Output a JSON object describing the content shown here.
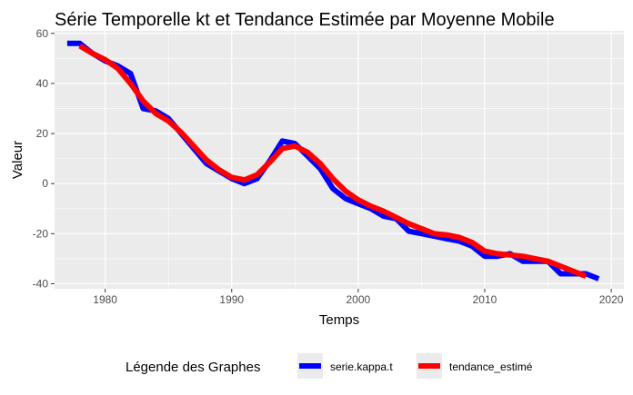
{
  "chart_data": {
    "type": "line",
    "title": "Série Temporelle kt et Tendance Estimée par Moyenne Mobile",
    "xlabel": "Temps",
    "ylabel": "Valeur",
    "xlim": [
      1976,
      2021
    ],
    "ylim": [
      -42,
      61
    ],
    "x_ticks": [
      1980,
      1990,
      2000,
      2010,
      2020
    ],
    "y_ticks": [
      -40,
      -20,
      0,
      20,
      40,
      60
    ],
    "grid": true,
    "legend_position": "bottom",
    "legend_title": "Légende des Graphes",
    "series": [
      {
        "name": "serie.kappa.t",
        "color": "#0000ff",
        "x": [
          1977,
          1978,
          1979,
          1980,
          1981,
          1982,
          1983,
          1984,
          1985,
          1986,
          1987,
          1988,
          1989,
          1990,
          1991,
          1992,
          1993,
          1994,
          1995,
          1996,
          1997,
          1998,
          1999,
          2000,
          2001,
          2002,
          2003,
          2004,
          2005,
          2006,
          2007,
          2008,
          2009,
          2010,
          2011,
          2012,
          2013,
          2014,
          2015,
          2016,
          2017,
          2018,
          2019
        ],
        "y": [
          56,
          56,
          52,
          49,
          47,
          44,
          30,
          29,
          26,
          20,
          14,
          8,
          5,
          2,
          0,
          2,
          9,
          17,
          16,
          11,
          6,
          -2,
          -6,
          -8,
          -10,
          -13,
          -14,
          -19,
          -20,
          -21,
          -22,
          -23,
          -25,
          -29,
          -29,
          -28,
          -31,
          -31,
          -31,
          -36,
          -36,
          -36,
          -38
        ]
      },
      {
        "name": "tendance_estimé",
        "color": "#ff0000",
        "x": [
          1978,
          1979,
          1980,
          1981,
          1982,
          1983,
          1984,
          1985,
          1986,
          1987,
          1988,
          1989,
          1990,
          1991,
          1992,
          1993,
          1994,
          1995,
          1996,
          1997,
          1998,
          1999,
          2000,
          2001,
          2002,
          2003,
          2004,
          2005,
          2006,
          2007,
          2008,
          2009,
          2010,
          2011,
          2012,
          2013,
          2014,
          2015,
          2016,
          2017,
          2018
        ],
        "y": [
          55,
          52,
          49.5,
          46,
          40,
          33,
          28,
          25,
          20.5,
          15,
          9.5,
          5.5,
          2.5,
          1.5,
          3.5,
          8.5,
          14,
          15,
          12.5,
          8,
          2,
          -3,
          -6.5,
          -9,
          -11,
          -13.5,
          -16,
          -18,
          -20,
          -20.5,
          -21.5,
          -23.5,
          -27,
          -28,
          -28.5,
          -29,
          -30,
          -31,
          -33,
          -35,
          -37
        ]
      }
    ]
  }
}
